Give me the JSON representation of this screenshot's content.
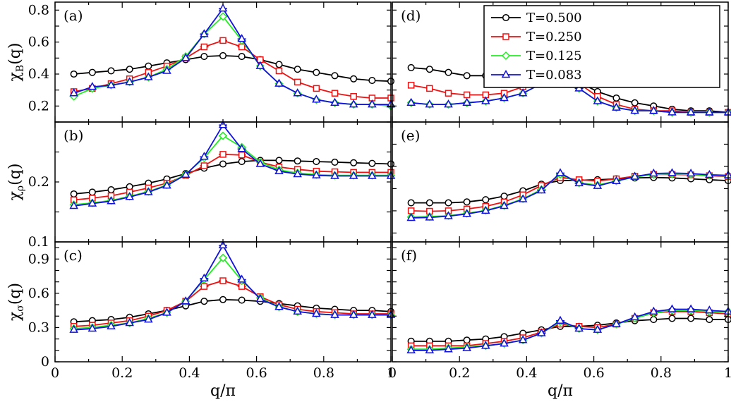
{
  "colors": {
    "T0500": "#000000",
    "T0250": "#ee1111",
    "T0125": "#22ee22",
    "T0083": "#1111dd"
  },
  "legend": {
    "placement": "top-right",
    "entries": [
      {
        "label": "T=0.500",
        "marker": "circle",
        "color": "#000000"
      },
      {
        "label": "T=0.250",
        "marker": "square",
        "color": "#ee1111"
      },
      {
        "label": "T=0.125",
        "marker": "diamond",
        "color": "#22ee22"
      },
      {
        "label": "T=0.083",
        "marker": "triangle",
        "color": "#1111dd"
      }
    ]
  },
  "chart_data": [
    {
      "type": "line",
      "panel": "(a)",
      "ylabel": "χB(q)",
      "xlabel": "",
      "xlim": [
        0,
        1
      ],
      "ylim": [
        0.1,
        0.85
      ],
      "yticks": [
        0.2,
        0.4,
        0.6,
        0.8
      ],
      "xticks": [],
      "x": [
        0.056,
        0.111,
        0.167,
        0.222,
        0.278,
        0.333,
        0.389,
        0.444,
        0.5,
        0.556,
        0.611,
        0.667,
        0.722,
        0.778,
        0.833,
        0.889,
        0.944,
        1.0
      ],
      "series": [
        {
          "name": "T=0.500",
          "values": [
            0.4,
            0.41,
            0.42,
            0.43,
            0.45,
            0.47,
            0.49,
            0.51,
            0.515,
            0.51,
            0.49,
            0.46,
            0.43,
            0.41,
            0.39,
            0.37,
            0.36,
            0.355
          ]
        },
        {
          "name": "T=0.250",
          "values": [
            0.29,
            0.31,
            0.34,
            0.37,
            0.41,
            0.45,
            0.5,
            0.57,
            0.61,
            0.57,
            0.49,
            0.42,
            0.35,
            0.31,
            0.28,
            0.26,
            0.25,
            0.25
          ]
        },
        {
          "name": "T=0.125",
          "values": [
            0.26,
            0.31,
            0.33,
            0.35,
            0.38,
            0.43,
            0.51,
            0.65,
            0.76,
            0.61,
            0.45,
            0.34,
            0.28,
            0.24,
            0.22,
            0.21,
            0.21,
            0.2
          ]
        },
        {
          "name": "T=0.083",
          "values": [
            0.28,
            0.32,
            0.33,
            0.35,
            0.38,
            0.42,
            0.5,
            0.65,
            0.81,
            0.62,
            0.45,
            0.34,
            0.28,
            0.24,
            0.22,
            0.21,
            0.21,
            0.21
          ]
        }
      ]
    },
    {
      "type": "line",
      "panel": "(b)",
      "ylabel": "χρ(q)",
      "xlabel": "",
      "xlim": [
        0,
        1
      ],
      "ylim": [
        0.1,
        0.3
      ],
      "yticks": [
        0.1,
        0.2
      ],
      "xticks": [],
      "x": [
        0.056,
        0.111,
        0.167,
        0.222,
        0.278,
        0.333,
        0.389,
        0.444,
        0.5,
        0.556,
        0.611,
        0.667,
        0.722,
        0.778,
        0.833,
        0.889,
        0.944,
        1.0
      ],
      "series": [
        {
          "name": "T=0.500",
          "values": [
            0.18,
            0.183,
            0.187,
            0.192,
            0.198,
            0.205,
            0.214,
            0.223,
            0.23,
            0.234,
            0.236,
            0.236,
            0.235,
            0.234,
            0.233,
            0.232,
            0.231,
            0.23
          ]
        },
        {
          "name": "T=0.250",
          "values": [
            0.17,
            0.173,
            0.177,
            0.183,
            0.19,
            0.198,
            0.211,
            0.227,
            0.246,
            0.245,
            0.233,
            0.225,
            0.221,
            0.218,
            0.217,
            0.216,
            0.216,
            0.216
          ]
        },
        {
          "name": "T=0.125",
          "values": [
            0.162,
            0.165,
            0.169,
            0.176,
            0.184,
            0.195,
            0.213,
            0.24,
            0.277,
            0.258,
            0.233,
            0.22,
            0.215,
            0.212,
            0.211,
            0.211,
            0.211,
            0.211
          ]
        },
        {
          "name": "T=0.083",
          "values": [
            0.16,
            0.164,
            0.168,
            0.175,
            0.183,
            0.194,
            0.212,
            0.242,
            0.295,
            0.255,
            0.23,
            0.218,
            0.213,
            0.211,
            0.21,
            0.21,
            0.21,
            0.21
          ]
        }
      ]
    },
    {
      "type": "line",
      "panel": "(c)",
      "ylabel": "χσ(q)",
      "xlabel": "q/π",
      "xlim": [
        0,
        1
      ],
      "ylim": [
        0,
        1.05
      ],
      "yticks": [
        0,
        0.3,
        0.6,
        0.9
      ],
      "xticks": [
        0,
        0.2,
        0.4,
        0.6,
        0.8,
        1
      ],
      "x": [
        0.056,
        0.111,
        0.167,
        0.222,
        0.278,
        0.333,
        0.389,
        0.444,
        0.5,
        0.556,
        0.611,
        0.667,
        0.722,
        0.778,
        0.833,
        0.889,
        0.944,
        1.0
      ],
      "series": [
        {
          "name": "T=0.500",
          "values": [
            0.35,
            0.36,
            0.37,
            0.39,
            0.42,
            0.45,
            0.49,
            0.53,
            0.545,
            0.54,
            0.53,
            0.51,
            0.49,
            0.47,
            0.46,
            0.45,
            0.45,
            0.44
          ]
        },
        {
          "name": "T=0.250",
          "values": [
            0.31,
            0.32,
            0.34,
            0.36,
            0.4,
            0.45,
            0.53,
            0.66,
            0.71,
            0.66,
            0.57,
            0.5,
            0.46,
            0.44,
            0.43,
            0.42,
            0.42,
            0.42
          ]
        },
        {
          "name": "T=0.125",
          "values": [
            0.29,
            0.3,
            0.32,
            0.34,
            0.38,
            0.43,
            0.53,
            0.72,
            0.91,
            0.71,
            0.56,
            0.48,
            0.44,
            0.42,
            0.41,
            0.41,
            0.41,
            0.41
          ]
        },
        {
          "name": "T=0.083",
          "values": [
            0.28,
            0.29,
            0.31,
            0.34,
            0.37,
            0.43,
            0.53,
            0.73,
            1.02,
            0.72,
            0.55,
            0.48,
            0.44,
            0.42,
            0.41,
            0.41,
            0.41,
            0.41
          ]
        }
      ]
    },
    {
      "type": "line",
      "panel": "(d)",
      "ylabel": "",
      "xlabel": "",
      "xlim": [
        0,
        1
      ],
      "ylim": [
        0.1,
        0.85
      ],
      "yticks": [],
      "xticks": [],
      "x": [
        0.056,
        0.111,
        0.167,
        0.222,
        0.278,
        0.333,
        0.389,
        0.444,
        0.5,
        0.556,
        0.611,
        0.667,
        0.722,
        0.778,
        0.833,
        0.889,
        0.944,
        1.0
      ],
      "series": [
        {
          "name": "T=0.500",
          "values": [
            0.44,
            0.43,
            0.41,
            0.39,
            0.39,
            0.4,
            0.42,
            0.44,
            0.41,
            0.35,
            0.29,
            0.25,
            0.22,
            0.2,
            0.18,
            0.17,
            0.17,
            0.16
          ]
        },
        {
          "name": "T=0.250",
          "values": [
            0.33,
            0.31,
            0.28,
            0.27,
            0.27,
            0.28,
            0.32,
            0.4,
            0.46,
            0.34,
            0.26,
            0.21,
            0.18,
            0.17,
            0.17,
            0.16,
            0.16,
            0.16
          ]
        },
        {
          "name": "T=0.125",
          "values": [
            0.22,
            0.21,
            0.21,
            0.22,
            0.23,
            0.25,
            0.28,
            0.34,
            0.46,
            0.31,
            0.23,
            0.19,
            0.17,
            0.17,
            0.16,
            0.16,
            0.16,
            0.16
          ]
        },
        {
          "name": "T=0.083",
          "values": [
            0.22,
            0.21,
            0.21,
            0.22,
            0.23,
            0.25,
            0.28,
            0.34,
            0.47,
            0.31,
            0.23,
            0.19,
            0.17,
            0.17,
            0.16,
            0.16,
            0.16,
            0.16
          ]
        }
      ]
    },
    {
      "type": "line",
      "panel": "(e)",
      "ylabel": "",
      "xlabel": "",
      "xlim": [
        0,
        1
      ],
      "ylim": [
        0.03,
        0.3
      ],
      "yticks": [],
      "xticks": [],
      "x": [
        0.056,
        0.111,
        0.167,
        0.222,
        0.278,
        0.333,
        0.389,
        0.444,
        0.5,
        0.556,
        0.611,
        0.667,
        0.722,
        0.778,
        0.833,
        0.889,
        0.944,
        1.0
      ],
      "series": [
        {
          "name": "T=0.500",
          "values": [
            0.118,
            0.118,
            0.118,
            0.12,
            0.125,
            0.133,
            0.145,
            0.16,
            0.168,
            0.169,
            0.17,
            0.172,
            0.174,
            0.175,
            0.174,
            0.172,
            0.17,
            0.168
          ]
        },
        {
          "name": "T=0.250",
          "values": [
            0.1,
            0.099,
            0.1,
            0.104,
            0.11,
            0.12,
            0.136,
            0.157,
            0.175,
            0.17,
            0.167,
            0.172,
            0.178,
            0.182,
            0.182,
            0.181,
            0.179,
            0.177
          ]
        },
        {
          "name": "T=0.125",
          "values": [
            0.086,
            0.087,
            0.089,
            0.094,
            0.101,
            0.112,
            0.127,
            0.148,
            0.182,
            0.163,
            0.158,
            0.167,
            0.176,
            0.182,
            0.183,
            0.182,
            0.18,
            0.178
          ]
        },
        {
          "name": "T=0.083",
          "values": [
            0.084,
            0.085,
            0.088,
            0.093,
            0.1,
            0.111,
            0.126,
            0.146,
            0.185,
            0.162,
            0.156,
            0.167,
            0.177,
            0.184,
            0.185,
            0.184,
            0.181,
            0.18
          ]
        }
      ]
    },
    {
      "type": "line",
      "panel": "(f)",
      "ylabel": "",
      "xlabel": "q/π",
      "xlim": [
        0,
        1
      ],
      "ylim": [
        0,
        1.05
      ],
      "yticks": [],
      "xticks": [
        0,
        0.2,
        0.4,
        0.6,
        0.8,
        1
      ],
      "x": [
        0.056,
        0.111,
        0.167,
        0.222,
        0.278,
        0.333,
        0.389,
        0.444,
        0.5,
        0.556,
        0.611,
        0.667,
        0.722,
        0.778,
        0.833,
        0.889,
        0.944,
        1.0
      ],
      "series": [
        {
          "name": "T=0.500",
          "values": [
            0.18,
            0.18,
            0.18,
            0.19,
            0.2,
            0.22,
            0.25,
            0.28,
            0.31,
            0.31,
            0.32,
            0.34,
            0.36,
            0.37,
            0.38,
            0.38,
            0.37,
            0.37
          ]
        },
        {
          "name": "T=0.250",
          "values": [
            0.14,
            0.14,
            0.14,
            0.14,
            0.16,
            0.18,
            0.21,
            0.26,
            0.33,
            0.31,
            0.3,
            0.33,
            0.38,
            0.43,
            0.44,
            0.44,
            0.43,
            0.42
          ]
        },
        {
          "name": "T=0.125",
          "values": [
            0.11,
            0.11,
            0.12,
            0.13,
            0.14,
            0.16,
            0.19,
            0.25,
            0.35,
            0.29,
            0.28,
            0.33,
            0.38,
            0.43,
            0.45,
            0.45,
            0.44,
            0.44
          ]
        },
        {
          "name": "T=0.083",
          "values": [
            0.1,
            0.1,
            0.11,
            0.12,
            0.14,
            0.16,
            0.19,
            0.25,
            0.36,
            0.29,
            0.28,
            0.33,
            0.39,
            0.44,
            0.46,
            0.46,
            0.45,
            0.44
          ]
        }
      ]
    }
  ]
}
